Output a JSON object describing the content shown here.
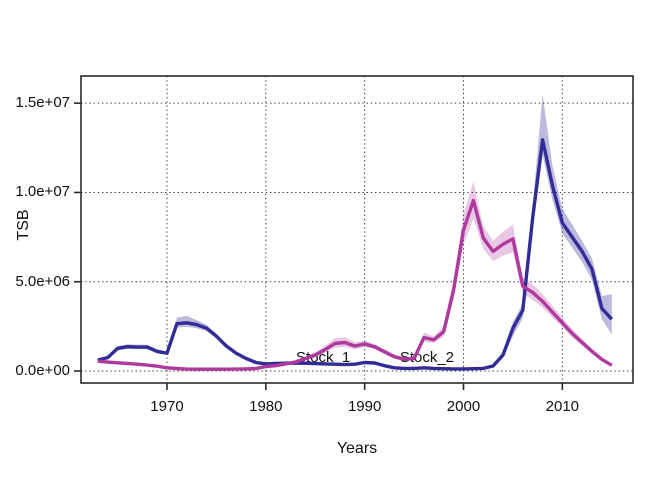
{
  "figure": {
    "background": "#ffffff",
    "frame_color": "#2b2b2b",
    "grid_color": "#3c3c3c",
    "text_color": "#111111"
  },
  "chart_data": {
    "type": "line",
    "title": "",
    "xlabel": "Years",
    "ylabel": "TSB",
    "grid": "dotted, at all x and y ticks",
    "legend_position": "labels drawn on plot near curves",
    "xlim": [
      1961.3,
      2017.15
    ],
    "ylim": [
      -670000,
      16520000
    ],
    "x_ticks": [
      1970,
      1980,
      1990,
      2000,
      2010
    ],
    "y_ticks": [
      {
        "value": 0,
        "label": "0.0e+00"
      },
      {
        "value": 5000000,
        "label": "5.0e+06"
      },
      {
        "value": 10000000,
        "label": "1.0e+07"
      },
      {
        "value": 15000000,
        "label": "1.5e+07"
      }
    ],
    "x": [
      1963,
      1964,
      1965,
      1966,
      1967,
      1968,
      1969,
      1970,
      1971,
      1972,
      1973,
      1974,
      1975,
      1976,
      1977,
      1978,
      1979,
      1980,
      1981,
      1982,
      1983,
      1984,
      1985,
      1986,
      1987,
      1988,
      1989,
      1990,
      1991,
      1992,
      1993,
      1994,
      1995,
      1996,
      1997,
      1998,
      1999,
      2000,
      2001,
      2002,
      2003,
      2004,
      2005,
      2006,
      2007,
      2008,
      2009,
      2010,
      2011,
      2012,
      2013,
      2014,
      2015
    ],
    "series": [
      {
        "name": "Stock_1",
        "line_color": "#332c96",
        "band_color": "rgba(51,44,150,0.32)",
        "values": [
          620000,
          750000,
          1270000,
          1360000,
          1340000,
          1340000,
          1100000,
          1000000,
          2650000,
          2700000,
          2600000,
          2400000,
          1950000,
          1400000,
          1000000,
          700000,
          480000,
          400000,
          420000,
          440000,
          450000,
          440000,
          420000,
          400000,
          380000,
          360000,
          380000,
          480000,
          450000,
          300000,
          180000,
          150000,
          150000,
          180000,
          150000,
          130000,
          120000,
          120000,
          130000,
          150000,
          280000,
          900000,
          2400000,
          3400000,
          8600000,
          12950000,
          10400000,
          8300000,
          7500000,
          6700000,
          5700000,
          3500000,
          2900000
        ],
        "upper": [
          700000,
          850000,
          1400000,
          1500000,
          1480000,
          1480000,
          1220000,
          1100000,
          3000000,
          3100000,
          2850000,
          2600000,
          2100000,
          1520000,
          1100000,
          780000,
          550000,
          460000,
          480000,
          500000,
          510000,
          500000,
          480000,
          450000,
          430000,
          410000,
          430000,
          540000,
          510000,
          350000,
          220000,
          190000,
          190000,
          220000,
          190000,
          170000,
          160000,
          160000,
          170000,
          200000,
          350000,
          1100000,
          2750000,
          3800000,
          9300000,
          15500000,
          11500000,
          9100000,
          8200000,
          7300000,
          6300000,
          4200000,
          4300000
        ],
        "lower": [
          550000,
          670000,
          1160000,
          1240000,
          1220000,
          1220000,
          1000000,
          910000,
          2420000,
          2480000,
          2400000,
          2240000,
          1820000,
          1300000,
          910000,
          630000,
          420000,
          350000,
          370000,
          390000,
          400000,
          390000,
          370000,
          350000,
          330000,
          320000,
          330000,
          420000,
          390000,
          260000,
          150000,
          120000,
          120000,
          150000,
          120000,
          100000,
          90000,
          90000,
          100000,
          120000,
          220000,
          720000,
          1950000,
          2950000,
          7900000,
          12100000,
          9600000,
          7700000,
          6900000,
          6100000,
          5100000,
          2900000,
          2050000
        ]
      },
      {
        "name": "Stock_2",
        "line_color": "#ae3a9e",
        "band_color": "rgba(174,58,158,0.28)",
        "values": [
          550000,
          500000,
          460000,
          420000,
          380000,
          330000,
          270000,
          180000,
          140000,
          110000,
          100000,
          100000,
          100000,
          100000,
          110000,
          120000,
          140000,
          250000,
          300000,
          400000,
          500000,
          700000,
          900000,
          1200000,
          1550000,
          1600000,
          1400000,
          1520000,
          1360000,
          1080000,
          800000,
          660000,
          700000,
          1880000,
          1750000,
          2200000,
          4550000,
          7900000,
          9550000,
          7450000,
          6700000,
          7100000,
          7400000,
          4750000,
          4400000,
          3900000,
          3300000,
          2700000,
          2100000,
          1600000,
          1100000,
          650000,
          320000
        ],
        "upper": [
          620000,
          560000,
          520000,
          470000,
          430000,
          380000,
          310000,
          220000,
          170000,
          140000,
          130000,
          130000,
          130000,
          130000,
          140000,
          150000,
          180000,
          310000,
          360000,
          470000,
          600000,
          820000,
          1050000,
          1400000,
          1850000,
          1900000,
          1620000,
          1700000,
          1520000,
          1220000,
          920000,
          760000,
          820000,
          2150000,
          1950000,
          2500000,
          5100000,
          8800000,
          10600000,
          8100000,
          7300000,
          7800000,
          8200000,
          5250000,
          4850000,
          4300000,
          3650000,
          3000000,
          2350000,
          1800000,
          1260000,
          760000,
          400000
        ],
        "lower": [
          490000,
          450000,
          410000,
          370000,
          330000,
          290000,
          230000,
          150000,
          110000,
          90000,
          80000,
          80000,
          80000,
          80000,
          90000,
          100000,
          110000,
          200000,
          240000,
          330000,
          420000,
          580000,
          760000,
          1020000,
          1300000,
          1350000,
          1200000,
          1350000,
          1210000,
          950000,
          690000,
          570000,
          600000,
          1630000,
          1570000,
          1950000,
          4050000,
          7050000,
          8550000,
          6850000,
          6150000,
          6450000,
          6650000,
          4300000,
          4000000,
          3550000,
          3000000,
          2450000,
          1880000,
          1420000,
          960000,
          550000,
          260000
        ]
      }
    ],
    "annotations": [
      {
        "text": "Stock_1",
        "x": 1985.8,
        "y": 730000
      },
      {
        "text": "Stock_2",
        "x": 1996.3,
        "y": 730000
      }
    ]
  }
}
